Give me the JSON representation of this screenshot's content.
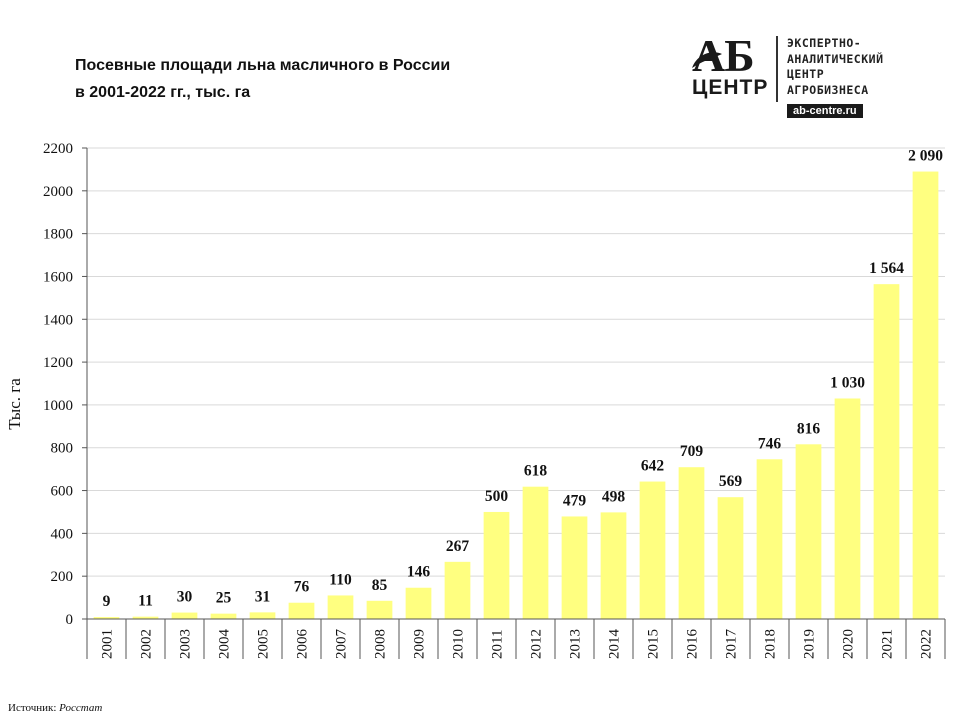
{
  "title_line1": "Посевные площади льна масличного в России",
  "title_line2": "в 2001-2022 гг., тыс. га",
  "logo": {
    "mark_top": "АБ",
    "mark_bottom": "ЦЕНТР",
    "line1": "ЭКСПЕРТНО-",
    "line2": "АНАЛИТИЧЕСКИЙ",
    "line3": "ЦЕНТР",
    "line4": "АГРОБИЗНЕСА",
    "url": "ab-centre.ru"
  },
  "source_label": "Источник:",
  "source_name": "Росстат",
  "chart_data": {
    "type": "bar",
    "ylabel": "Тыс. га",
    "ylim": [
      0,
      2200
    ],
    "yticks": [
      "0",
      "200",
      "400",
      "600",
      "800",
      "1000",
      "1200",
      "1400",
      "1600",
      "1800",
      "2000",
      "2200"
    ],
    "grid": true,
    "bar_color": "#FFFF80",
    "categories": [
      "2001",
      "2002",
      "2003",
      "2004",
      "2005",
      "2006",
      "2007",
      "2008",
      "2009",
      "2010",
      "2011",
      "2012",
      "2013",
      "2014",
      "2015",
      "2016",
      "2017",
      "2018",
      "2019",
      "2020",
      "2021",
      "2022"
    ],
    "values": [
      9,
      11,
      30,
      25,
      31,
      76,
      110,
      85,
      146,
      267,
      500,
      618,
      479,
      498,
      642,
      709,
      569,
      746,
      816,
      1030,
      1564,
      2090
    ],
    "labels": [
      "9",
      "11",
      "30",
      "25",
      "31",
      "76",
      "110",
      "85",
      "146",
      "267",
      "500",
      "618",
      "479",
      "498",
      "642",
      "709",
      "569",
      "746",
      "816",
      "1 030",
      "1 564",
      "2 090"
    ]
  }
}
